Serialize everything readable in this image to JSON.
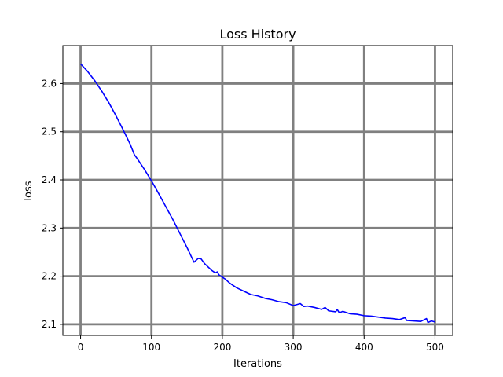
{
  "chart_data": {
    "type": "line",
    "title": "Loss History",
    "xlabel": "Iterations",
    "ylabel": "loss",
    "xlim": [
      -25,
      525
    ],
    "ylim": [
      2.077,
      2.679
    ],
    "xticks": [
      0,
      100,
      200,
      300,
      400,
      500
    ],
    "xtick_labels": [
      "0",
      "100",
      "200",
      "300",
      "400",
      "500"
    ],
    "yticks": [
      2.1,
      2.2,
      2.3,
      2.4,
      2.5,
      2.6
    ],
    "ytick_labels": [
      "2.1",
      "2.2",
      "2.3",
      "2.4",
      "2.5",
      "2.6"
    ],
    "grid": true,
    "grid_color": "#808080",
    "legend": false,
    "series": [
      {
        "color": "#0000ff",
        "x": [
          0,
          10,
          20,
          30,
          40,
          50,
          60,
          70,
          76,
          80,
          90,
          100,
          110,
          120,
          130,
          140,
          150,
          160,
          166,
          170,
          175,
          180,
          185,
          190,
          193,
          195,
          200,
          205,
          210,
          220,
          230,
          240,
          250,
          260,
          270,
          280,
          290,
          300,
          305,
          310,
          315,
          320,
          330,
          340,
          345,
          350,
          360,
          362,
          365,
          370,
          380,
          390,
          400,
          410,
          420,
          430,
          440,
          450,
          458,
          460,
          470,
          480,
          488,
          490,
          495,
          500
        ],
        "y": [
          2.641,
          2.625,
          2.606,
          2.584,
          2.56,
          2.533,
          2.504,
          2.474,
          2.452,
          2.444,
          2.422,
          2.398,
          2.372,
          2.345,
          2.318,
          2.289,
          2.26,
          2.229,
          2.237,
          2.236,
          2.226,
          2.219,
          2.212,
          2.207,
          2.209,
          2.203,
          2.198,
          2.193,
          2.186,
          2.176,
          2.169,
          2.162,
          2.159,
          2.154,
          2.151,
          2.147,
          2.145,
          2.139,
          2.141,
          2.143,
          2.137,
          2.138,
          2.135,
          2.131,
          2.135,
          2.128,
          2.126,
          2.131,
          2.124,
          2.127,
          2.122,
          2.121,
          2.118,
          2.117,
          2.115,
          2.113,
          2.112,
          2.11,
          2.114,
          2.108,
          2.107,
          2.106,
          2.112,
          2.104,
          2.107,
          2.105
        ]
      }
    ]
  }
}
